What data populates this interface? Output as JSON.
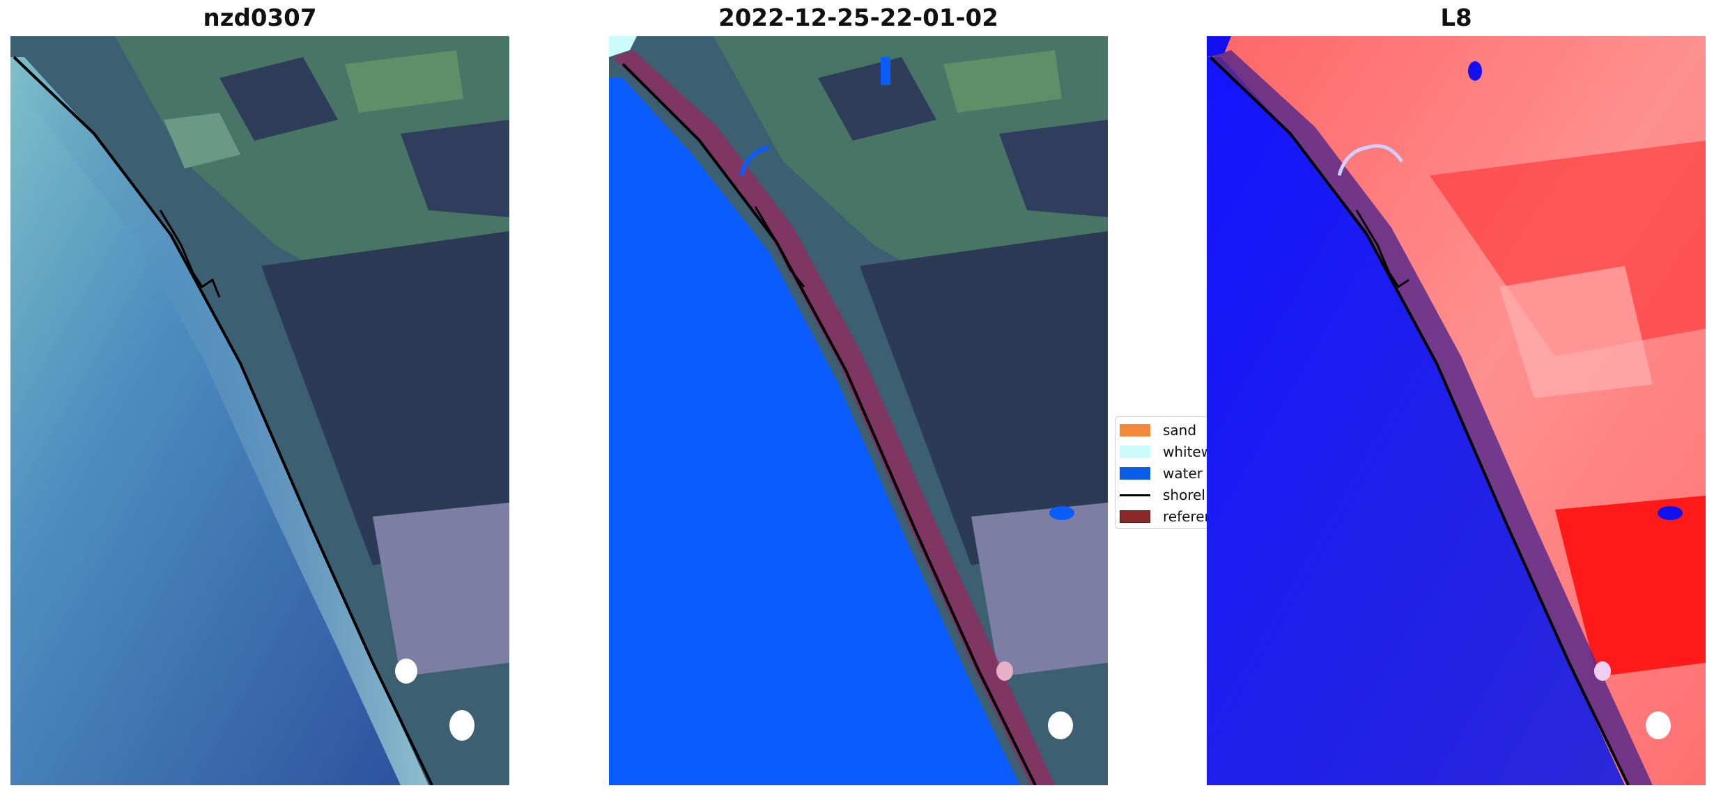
{
  "panels": [
    {
      "title": "nzd0307"
    },
    {
      "title": "2022-12-25-22-01-02"
    },
    {
      "title": "L8"
    }
  ],
  "legend": {
    "items": [
      {
        "label": "sand",
        "kind": "patch",
        "color": "#f4893b"
      },
      {
        "label": "whitew",
        "kind": "patch",
        "color": "#cbfcfb"
      },
      {
        "label": "water",
        "kind": "patch",
        "color": "#0a5ee8"
      },
      {
        "label": "shorel",
        "kind": "line",
        "color": "#000000"
      },
      {
        "label": "referer",
        "kind": "patch",
        "color": "#8b2a2a"
      }
    ]
  },
  "colors": {
    "water_class": "#0a5cff",
    "reference_band": "#8b2f60",
    "shoreline": "#000000",
    "l8_water": "#1010f0",
    "l8_land": "#ff4040"
  }
}
